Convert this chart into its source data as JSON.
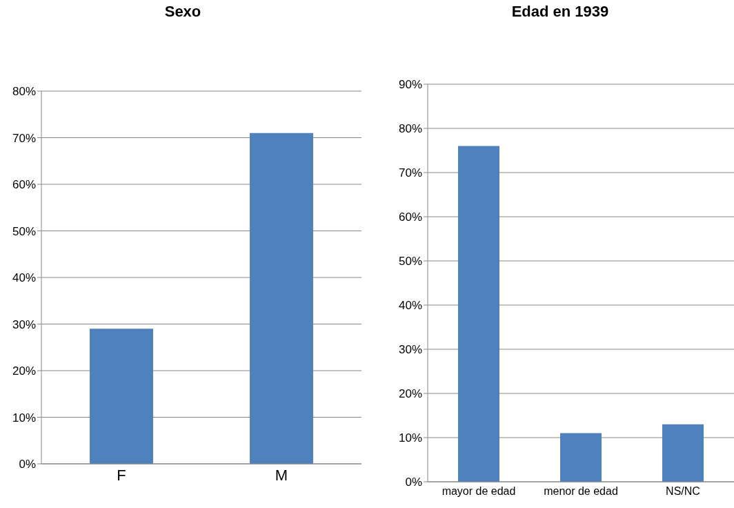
{
  "chart_data": [
    {
      "type": "bar",
      "title": "Sexo",
      "categories": [
        "F",
        "M"
      ],
      "values": [
        29,
        71
      ],
      "color": "#4f81bd",
      "ylim": [
        0,
        80
      ],
      "yticks": [
        {
          "value": 0,
          "label": "0%"
        },
        {
          "value": 10,
          "label": "10%"
        },
        {
          "value": 20,
          "label": "20%"
        },
        {
          "value": 30,
          "label": "30%"
        },
        {
          "value": 40,
          "label": "40%"
        },
        {
          "value": 50,
          "label": "50%"
        },
        {
          "value": 60,
          "label": "60%"
        },
        {
          "value": 70,
          "label": "70%"
        },
        {
          "value": 80,
          "label": "80%"
        }
      ],
      "grid": "y"
    },
    {
      "type": "bar",
      "title": "Edad en 1939",
      "categories": [
        "mayor de edad",
        "menor de edad",
        "NS/NC"
      ],
      "values": [
        76,
        11,
        13
      ],
      "color": "#4f81bd",
      "ylim": [
        0,
        90
      ],
      "yticks": [
        {
          "value": 0,
          "label": "0%"
        },
        {
          "value": 10,
          "label": "10%"
        },
        {
          "value": 20,
          "label": "20%"
        },
        {
          "value": 30,
          "label": "30%"
        },
        {
          "value": 40,
          "label": "40%"
        },
        {
          "value": 50,
          "label": "50%"
        },
        {
          "value": 60,
          "label": "60%"
        },
        {
          "value": 70,
          "label": "70%"
        },
        {
          "value": 80,
          "label": "80%"
        },
        {
          "value": 90,
          "label": "90%"
        }
      ],
      "grid": "y"
    }
  ]
}
